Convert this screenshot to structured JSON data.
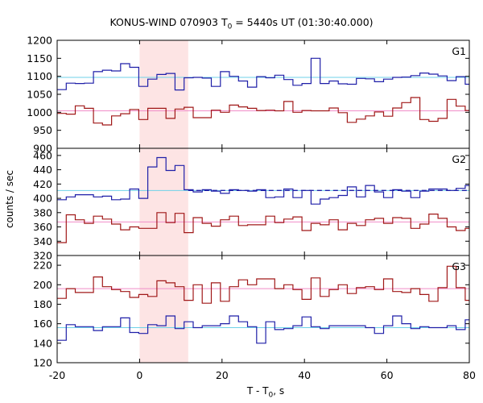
{
  "title": {
    "main": "KONUS-WIND 070903 T",
    "sub": "0",
    "rest": " = 5440s UT (01:30:40.000)"
  },
  "ylabel": "counts / sec",
  "xlabel": {
    "main": "T - T",
    "sub": "0",
    "rest": ", s"
  },
  "colors": {
    "blue": "#1f1fa8",
    "red": "#a01818",
    "cyan": "#6fd2e8",
    "pink": "#f08cc8",
    "shade": "#fde4e4"
  },
  "chart_data": {
    "type": "line",
    "x_range": [
      -20,
      80
    ],
    "x_ticks": [
      -20,
      0,
      20,
      40,
      60,
      80
    ],
    "shaded_interval": [
      0,
      11.8
    ],
    "panels": [
      {
        "label": "G1",
        "ylim": [
          900,
          1200
        ],
        "y_ticks": [
          900,
          950,
          1000,
          1050,
          1100,
          1150,
          1200
        ],
        "x_edges": [
          -20,
          -17.8,
          -15.6,
          -13.4,
          -11.2,
          -9,
          -6.8,
          -4.6,
          -2.4,
          -0.2,
          2,
          4.2,
          6.4,
          8.6,
          10.8,
          13,
          15.2,
          17.4,
          19.6,
          21.8,
          24,
          26.2,
          28.4,
          30.6,
          32.8,
          35,
          37.2,
          39.4,
          41.6,
          43.8,
          46,
          48.2,
          50.4,
          52.6,
          54.8,
          57,
          59.2,
          61.4,
          63.6,
          65.8,
          68,
          70.2,
          72.4,
          74.6,
          76.8,
          79,
          80
        ],
        "series": [
          {
            "color": "blue",
            "values": [
              1063,
              1081,
              1080,
              1081,
              1113,
              1117,
              1115,
              1135,
              1125,
              1072,
              1092,
              1105,
              1108,
              1062,
              1096,
              1097,
              1095,
              1072,
              1113,
              1100,
              1087,
              1070,
              1099,
              1096,
              1103,
              1091,
              1075,
              1080,
              1150,
              1080,
              1087,
              1079,
              1078,
              1094,
              1093,
              1085,
              1092,
              1097,
              1098,
              1102,
              1109,
              1106,
              1101,
              1088,
              1099,
              1078,
              1078
            ]
          },
          {
            "color": "red",
            "values": [
              997,
              995,
              1018,
              1011,
              970,
              965,
              990,
              996,
              1008,
              980,
              1011,
              1011,
              983,
              1009,
              1014,
              985,
              985,
              1006,
              1000,
              1020,
              1015,
              1011,
              1005,
              1006,
              1004,
              1030,
              1000,
              1005,
              1004,
              1004,
              1012,
              999,
              972,
              981,
              990,
              1001,
              989,
              1012,
              1027,
              1041,
              980,
              975,
              983,
              1036,
              1017,
              1005,
              1037
            ]
          }
        ],
        "background": {
          "blue": 1097,
          "red": 1004
        }
      },
      {
        "label": "G2",
        "ylim": [
          320,
          470
        ],
        "y_ticks": [
          320,
          340,
          360,
          380,
          400,
          420,
          440,
          460
        ],
        "x_edges": [
          -20,
          -17.8,
          -15.6,
          -13.4,
          -11.2,
          -9,
          -6.8,
          -4.6,
          -2.4,
          -0.2,
          2,
          4.2,
          6.4,
          8.6,
          10.8,
          13,
          15.2,
          17.4,
          19.6,
          21.8,
          24,
          26.2,
          28.4,
          30.6,
          32.8,
          35,
          37.2,
          39.4,
          41.6,
          43.8,
          46,
          48.2,
          50.4,
          52.6,
          54.8,
          57,
          59.2,
          61.4,
          63.6,
          65.8,
          68,
          70.2,
          72.4,
          74.6,
          76.8,
          79,
          80
        ],
        "series": [
          {
            "color": "blue",
            "values": [
              398,
              402,
              405,
              405,
              402,
              403,
              398,
              399,
              413,
              400,
              444,
              457,
              439,
              446,
              412,
              409,
              412,
              410,
              407,
              412,
              411,
              410,
              412,
              401,
              402,
              413,
              401,
              411,
              392,
              399,
              401,
              404,
              416,
              402,
              418,
              409,
              401,
              412,
              410,
              401,
              410,
              413,
              413,
              411,
              414,
              418,
              418
            ]
          },
          {
            "color": "red",
            "values": [
              338,
              377,
              370,
              365,
              375,
              371,
              364,
              356,
              360,
              358,
              358,
              380,
              366,
              379,
              352,
              373,
              365,
              361,
              370,
              375,
              362,
              363,
              363,
              375,
              366,
              371,
              374,
              355,
              365,
              363,
              370,
              356,
              365,
              362,
              370,
              372,
              365,
              373,
              372,
              358,
              364,
              378,
              372,
              360,
              355,
              358,
              358
            ]
          }
        ],
        "background": {
          "blue": 411,
          "red": 367
        }
      },
      {
        "label": "G3",
        "ylim": [
          120,
          230
        ],
        "y_ticks": [
          120,
          140,
          160,
          180,
          200,
          220
        ],
        "x_edges": [
          -20,
          -17.8,
          -15.6,
          -13.4,
          -11.2,
          -9,
          -6.8,
          -4.6,
          -2.4,
          -0.2,
          2,
          4.2,
          6.4,
          8.6,
          10.8,
          13,
          15.2,
          17.4,
          19.6,
          21.8,
          24,
          26.2,
          28.4,
          30.6,
          32.8,
          35,
          37.2,
          39.4,
          41.6,
          43.8,
          46,
          48.2,
          50.4,
          52.6,
          54.8,
          57,
          59.2,
          61.4,
          63.6,
          65.8,
          68,
          70.2,
          72.4,
          74.6,
          76.8,
          79,
          80
        ],
        "series": [
          {
            "color": "red",
            "values": [
              186,
              196,
              192,
              192,
              208,
              198,
              195,
              193,
              187,
              190,
              188,
              204,
              202,
              198,
              184,
              200,
              181,
              202,
              183,
              198,
              205,
              200,
              206,
              206,
              196,
              200,
              195,
              185,
              207,
              188,
              195,
              200,
              191,
              197,
              198,
              195,
              206,
              193,
              192,
              196,
              190,
              183,
              197,
              219,
              197,
              184,
              184
            ]
          },
          {
            "color": "blue",
            "values": [
              143,
              159,
              157,
              157,
              153,
              157,
              157,
              166,
              151,
              150,
              159,
              158,
              168,
              155,
              162,
              156,
              158,
              158,
              160,
              168,
              162,
              157,
              140,
              162,
              154,
              155,
              158,
              167,
              157,
              155,
              158,
              158,
              158,
              158,
              156,
              150,
              158,
              168,
              160,
              155,
              157,
              156,
              156,
              158,
              154,
              164,
              164
            ]
          }
        ],
        "background": {
          "blue": 156,
          "red": 196
        }
      }
    ]
  }
}
